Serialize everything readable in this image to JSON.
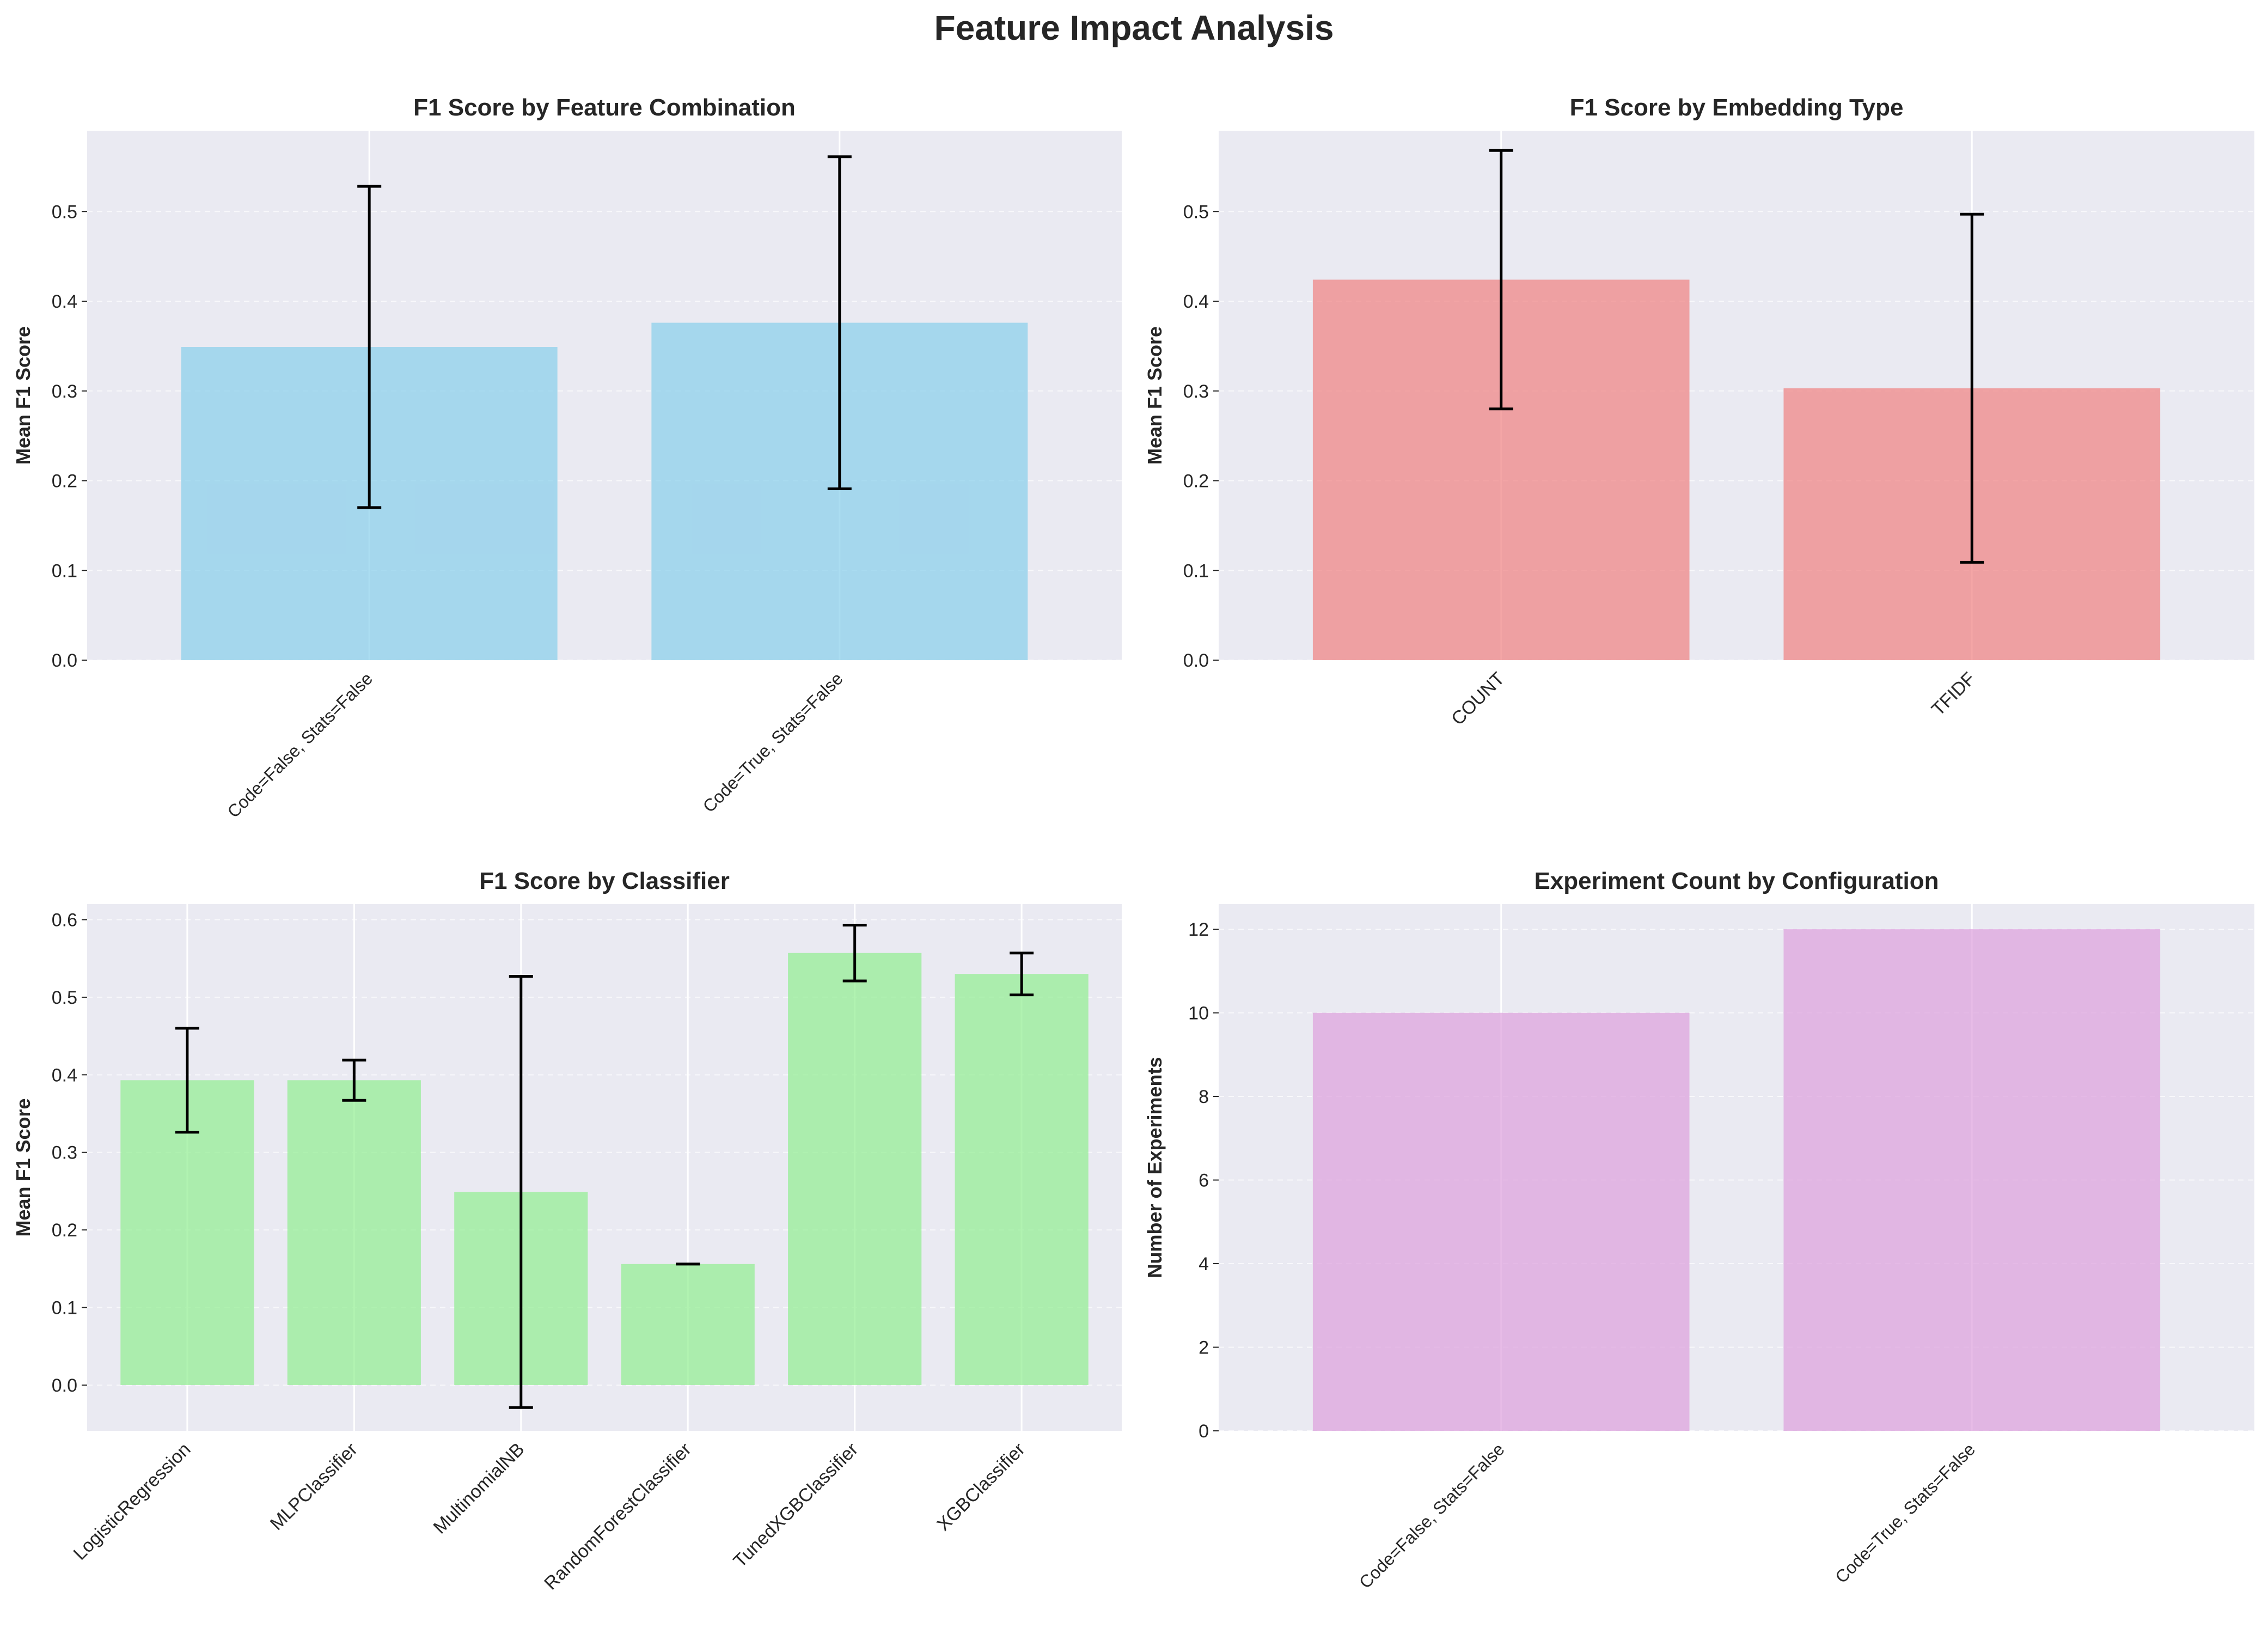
{
  "figure": {
    "title": "Feature Impact Analysis"
  },
  "chart_data": [
    {
      "type": "bar",
      "title": "F1 Score by Feature Combination",
      "xlabel": "",
      "ylabel": "Mean F1 Score",
      "ylim": [
        0,
        0.59
      ],
      "yticks": [
        0.0,
        0.1,
        0.2,
        0.3,
        0.4,
        0.5
      ],
      "yticks_decimals": 1,
      "categories": [
        "Code=False, Stats=False",
        "Code=True, Stats=False"
      ],
      "values": [
        0.349,
        0.376
      ],
      "errors": [
        0.179,
        0.185
      ],
      "color": "#87ceeb",
      "xtick_rotation": 45,
      "xtick_style": "small",
      "grid": true,
      "legend": "none"
    },
    {
      "type": "bar",
      "title": "F1 Score by Embedding Type",
      "xlabel": "",
      "ylabel": "Mean F1 Score",
      "ylim": [
        0,
        0.59
      ],
      "yticks": [
        0.0,
        0.1,
        0.2,
        0.3,
        0.4,
        0.5
      ],
      "yticks_decimals": 1,
      "categories": [
        "COUNT",
        "TFIDF"
      ],
      "values": [
        0.424,
        0.303
      ],
      "errors": [
        0.144,
        0.194
      ],
      "color": "#f08080",
      "xtick_rotation": 45,
      "xtick_style": "normal",
      "grid": true,
      "legend": "none"
    },
    {
      "type": "bar",
      "title": "F1 Score by Classifier",
      "xlabel": "",
      "ylabel": "Mean F1 Score",
      "ylim": [
        -0.059,
        0.62
      ],
      "yticks": [
        0.0,
        0.1,
        0.2,
        0.3,
        0.4,
        0.5,
        0.6
      ],
      "yticks_decimals": 1,
      "categories": [
        "LogisticRegression",
        "MLPClassifier",
        "MultinomialNB",
        "RandomForestClassifier",
        "TunedXGBClassifier",
        "XGBClassifier"
      ],
      "values": [
        0.393,
        0.393,
        0.249,
        0.156,
        0.557,
        0.53
      ],
      "errors": [
        0.067,
        0.026,
        0.278,
        0.0,
        0.036,
        0.027
      ],
      "color": "#90ee90",
      "xtick_rotation": 45,
      "xtick_style": "normal",
      "grid": true,
      "legend": "none"
    },
    {
      "type": "bar",
      "title": "Experiment Count by Configuration",
      "xlabel": "",
      "ylabel": "Number of Experiments",
      "ylim": [
        0,
        12.6
      ],
      "yticks": [
        0,
        2,
        4,
        6,
        8,
        10,
        12
      ],
      "yticks_decimals": 0,
      "categories": [
        "Code=False, Stats=False",
        "Code=True, Stats=False"
      ],
      "values": [
        10,
        12
      ],
      "color": "#dda0dd",
      "xtick_rotation": 45,
      "xtick_style": "small",
      "grid": true,
      "legend": "none"
    }
  ]
}
